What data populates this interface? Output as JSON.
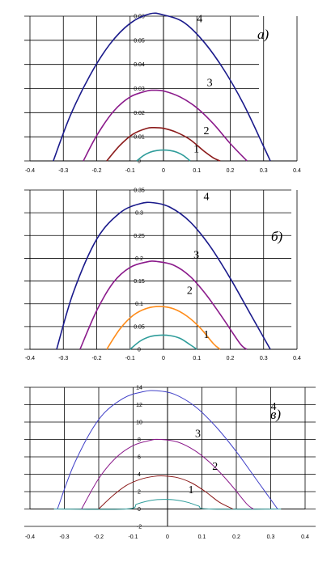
{
  "chart_data": [
    {
      "type": "line",
      "panel_label": "a)",
      "xlim": [
        -0.4,
        0.4
      ],
      "ylim": [
        0,
        0.06
      ],
      "x_ticks": [
        "-0.4",
        "-0.3",
        "-0.2",
        "-0.1",
        "0",
        "0.1",
        "0.2",
        "0.3",
        "0.4"
      ],
      "y_ticks": [
        "0",
        "0.01",
        "0.02",
        "0.03",
        "0.04",
        "0.05",
        "0.06"
      ],
      "grid": true,
      "series": [
        {
          "name": "1",
          "color": "#2e9c9a",
          "x": [
            -0.08,
            -0.06,
            -0.04,
            -0.02,
            0,
            0.02,
            0.04,
            0.06,
            0.08
          ],
          "y": [
            0.0,
            0.0022,
            0.0036,
            0.0043,
            0.0045,
            0.0043,
            0.0036,
            0.0022,
            0.0
          ]
        },
        {
          "name": "2",
          "color": "#8b1a1a",
          "x": [
            -0.17,
            -0.13,
            -0.09,
            -0.05,
            -0.03,
            0.0,
            0.04,
            0.08,
            0.12,
            0.15,
            0.17
          ],
          "y": [
            0.0,
            0.0065,
            0.0112,
            0.0135,
            0.0138,
            0.0135,
            0.0118,
            0.0088,
            0.0042,
            0.0012,
            0.0
          ]
        },
        {
          "name": "3",
          "color": "#8b1a8b",
          "x": [
            -0.24,
            -0.2,
            -0.15,
            -0.1,
            -0.05,
            -0.03,
            0.0,
            0.05,
            0.1,
            0.15,
            0.2,
            0.25
          ],
          "y": [
            0.0,
            0.0105,
            0.0205,
            0.0265,
            0.029,
            0.0293,
            0.029,
            0.0265,
            0.022,
            0.0153,
            0.0072,
            0.0
          ]
        },
        {
          "name": "4",
          "color": "#1a1a8b",
          "x": [
            -0.33,
            -0.28,
            -0.22,
            -0.16,
            -0.1,
            -0.04,
            0.0,
            0.06,
            0.12,
            0.18,
            0.24,
            0.3,
            0.32
          ],
          "y": [
            0.0,
            0.0185,
            0.0355,
            0.0485,
            0.057,
            0.061,
            0.0605,
            0.0575,
            0.0495,
            0.038,
            0.0235,
            0.006,
            0.0
          ]
        }
      ],
      "curve_labels": [
        {
          "text": "1",
          "x": 0.09,
          "y": 0.0035
        },
        {
          "text": "2",
          "x": 0.12,
          "y": 0.011
        },
        {
          "text": "3",
          "x": 0.13,
          "y": 0.031
        },
        {
          "text": "4",
          "x": 0.1,
          "y": 0.0575
        }
      ]
    },
    {
      "type": "line",
      "panel_label": "б)",
      "xlim": [
        -0.4,
        0.4
      ],
      "ylim": [
        0,
        0.35
      ],
      "x_ticks": [
        "-0.4",
        "-0.3",
        "-0.2",
        "-0.1",
        "0",
        "0.1",
        "0.2",
        "0.3",
        "0.4"
      ],
      "y_ticks": [
        "0",
        "0.05",
        "0.1",
        "0.15",
        "0.2",
        "0.25",
        "0.3",
        "0.35"
      ],
      "grid": true,
      "series": [
        {
          "name": "1",
          "color": "#2e9c9a",
          "x": [
            -0.1,
            -0.07,
            -0.04,
            -0.01,
            0.02,
            0.05,
            0.08,
            0.1
          ],
          "y": [
            0.0,
            0.018,
            0.028,
            0.031,
            0.03,
            0.024,
            0.01,
            0.0
          ]
        },
        {
          "name": "2",
          "color": "#ff8c1a",
          "x": [
            -0.17,
            -0.13,
            -0.09,
            -0.05,
            -0.01,
            0.03,
            0.07,
            0.11,
            0.15,
            0.17
          ],
          "y": [
            0.0,
            0.045,
            0.075,
            0.09,
            0.094,
            0.089,
            0.073,
            0.047,
            0.012,
            0.0
          ]
        },
        {
          "name": "3",
          "color": "#8b1a8b",
          "x": [
            -0.25,
            -0.2,
            -0.15,
            -0.1,
            -0.05,
            -0.02,
            0.03,
            0.08,
            0.13,
            0.18,
            0.23,
            0.25
          ],
          "y": [
            0.0,
            0.085,
            0.147,
            0.18,
            0.192,
            0.193,
            0.185,
            0.16,
            0.118,
            0.066,
            0.012,
            0.0
          ]
        },
        {
          "name": "4",
          "color": "#1a1a8b",
          "x": [
            -0.32,
            -0.27,
            -0.2,
            -0.13,
            -0.07,
            -0.03,
            0.02,
            0.08,
            0.14,
            0.2,
            0.26,
            0.32
          ],
          "y": [
            0.0,
            0.125,
            0.242,
            0.3,
            0.32,
            0.322,
            0.312,
            0.28,
            0.226,
            0.156,
            0.078,
            0.0
          ]
        }
      ],
      "curve_labels": [
        {
          "text": "1",
          "x": 0.12,
          "y": 0.025
        },
        {
          "text": "2",
          "x": 0.07,
          "y": 0.122
        },
        {
          "text": "3",
          "x": 0.09,
          "y": 0.2
        },
        {
          "text": "4",
          "x": 0.12,
          "y": 0.328
        }
      ]
    },
    {
      "type": "line",
      "panel_label": "в)",
      "xlim": [
        -0.4,
        0.4
      ],
      "ylim": [
        -2,
        14
      ],
      "x_ticks": [
        "-0.4",
        "-0.3",
        "-0.2",
        "-0.1",
        "0",
        "0.1",
        "0.2",
        "0.3",
        "0.4"
      ],
      "y_ticks": [
        "-2",
        "0",
        "2",
        "4",
        "6",
        "8",
        "10",
        "12",
        "14"
      ],
      "grid": true,
      "series": [
        {
          "name": "1",
          "color": "#2e9c9a",
          "x": [
            -0.33,
            -0.12,
            -0.09,
            -0.06,
            -0.03,
            0.0,
            0.03,
            0.06,
            0.09,
            0.12,
            0.33
          ],
          "y": [
            0.0,
            0.0,
            0.55,
            0.9,
            1.08,
            1.1,
            1.0,
            0.75,
            0.35,
            0.0,
            0.0
          ]
        },
        {
          "name": "2",
          "color": "#8b1a1a",
          "x": [
            -0.2,
            -0.16,
            -0.12,
            -0.08,
            -0.04,
            -0.01,
            0.03,
            0.07,
            0.11,
            0.15,
            0.19
          ],
          "y": [
            0.0,
            1.5,
            2.7,
            3.4,
            3.75,
            3.8,
            3.6,
            3.0,
            2.0,
            0.8,
            0.0
          ]
        },
        {
          "name": "3",
          "color": "#8b1a8b",
          "x": [
            -0.25,
            -0.2,
            -0.15,
            -0.1,
            -0.05,
            -0.02,
            0.03,
            0.08,
            0.13,
            0.18,
            0.23,
            0.25
          ],
          "y": [
            0.0,
            3.5,
            5.9,
            7.3,
            7.9,
            8.0,
            7.7,
            6.7,
            5.1,
            3.0,
            0.6,
            0.0
          ]
        },
        {
          "name": "4",
          "color": "#4040c8",
          "x": [
            -0.32,
            -0.27,
            -0.2,
            -0.13,
            -0.07,
            -0.03,
            0.02,
            0.08,
            0.14,
            0.2,
            0.26,
            0.32
          ],
          "y": [
            0.0,
            5.3,
            10.3,
            12.7,
            13.5,
            13.6,
            13.2,
            11.8,
            9.5,
            6.6,
            3.3,
            0.0
          ]
        }
      ],
      "curve_labels": [
        {
          "text": "1",
          "x": 0.06,
          "y": 1.8
        },
        {
          "text": "2",
          "x": 0.13,
          "y": 4.5
        },
        {
          "text": "3",
          "x": 0.08,
          "y": 8.3
        },
        {
          "text": "4",
          "x": 0.3,
          "y": 11.4
        }
      ]
    }
  ]
}
